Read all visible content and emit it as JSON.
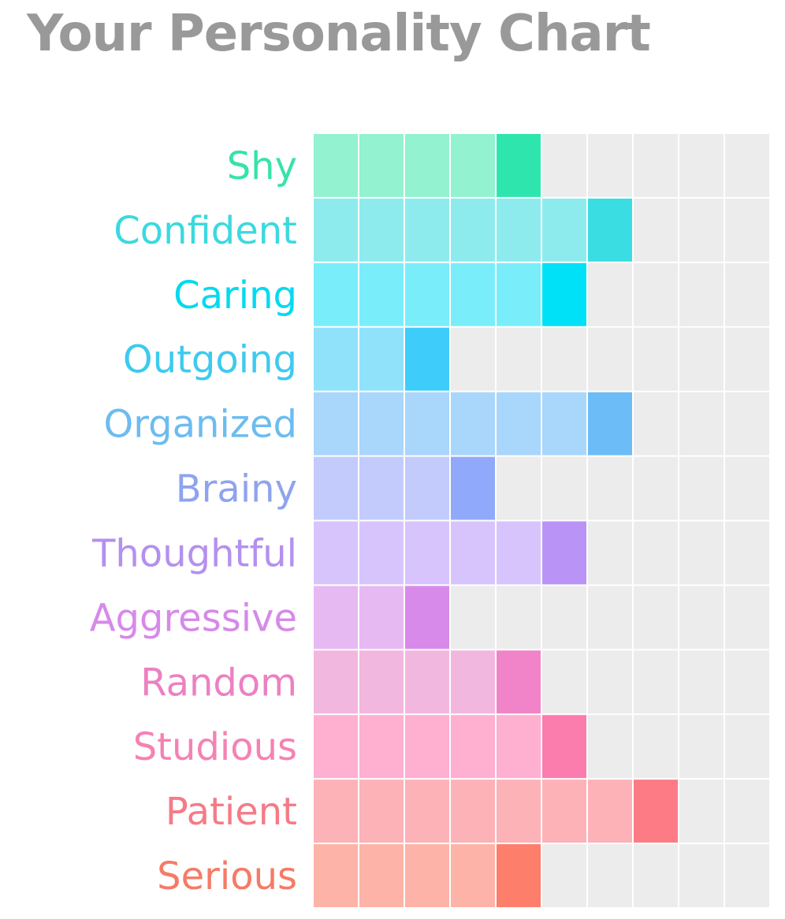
{
  "chart_data": {
    "type": "bar",
    "title": "Your Personality Chart",
    "categories": [
      "Shy",
      "Confident",
      "Caring",
      "Outgoing",
      "Organized",
      "Brainy",
      "Thoughtful",
      "Aggressive",
      "Random",
      "Studious",
      "Patient",
      "Serious"
    ],
    "values": [
      5,
      7,
      6,
      3,
      7,
      4,
      6,
      3,
      5,
      6,
      8,
      5
    ],
    "xlim": [
      0,
      10
    ],
    "colors": {
      "label": [
        "#36e3a8",
        "#3bd9df",
        "#00daf0",
        "#3dcaef",
        "#6cbcf0",
        "#8fa3ee",
        "#b490ef",
        "#d68ae9",
        "#ec80c2",
        "#f582b4",
        "#f47b87",
        "#f57b66"
      ],
      "fill": [
        "#93f2cf",
        "#8eebed",
        "#7aedfb",
        "#90e2fb",
        "#a9d6fb",
        "#c3cbfd",
        "#d8c4fc",
        "#e7b9f3",
        "#f2b7de",
        "#ffafd0",
        "#fdb2b8",
        "#fdb3a7"
      ],
      "end": [
        "#2ee6ad",
        "#3adde2",
        "#00e1f7",
        "#3ecdfb",
        "#6cbcf7",
        "#91a9fa",
        "#b994f6",
        "#d88aea",
        "#f183c8",
        "#fb7dad",
        "#fc7b85",
        "#fd7e6b"
      ],
      "empty": "#ececec",
      "title": "#999999"
    }
  }
}
